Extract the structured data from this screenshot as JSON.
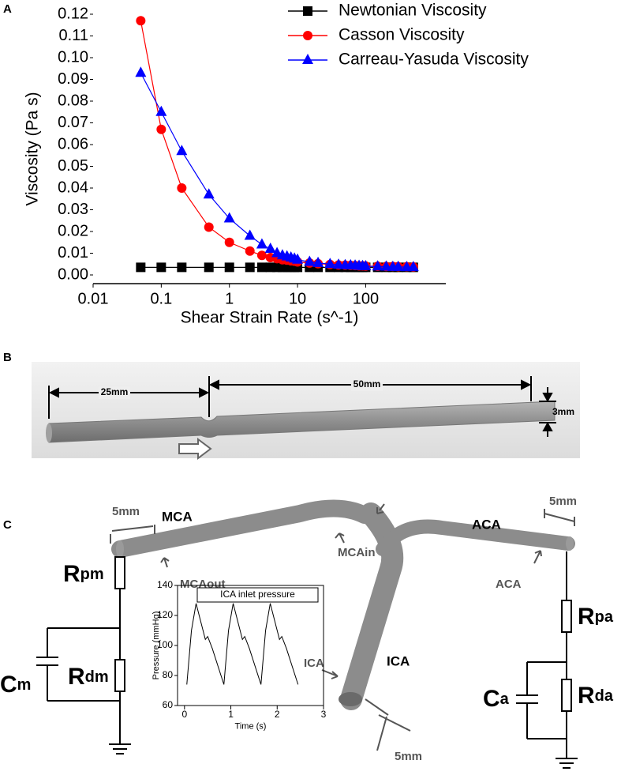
{
  "chart_data": [
    {
      "type": "line",
      "panel": "A",
      "xscale": "log",
      "xlabel": "Shear Strain Rate (s^-1)",
      "ylabel": "Viscosity (Pa s)",
      "x": [
        0.05,
        0.1,
        0.2,
        0.5,
        1,
        2,
        3,
        4,
        5,
        6,
        7,
        8,
        9,
        10,
        15,
        20,
        30,
        40,
        50,
        60,
        70,
        80,
        90,
        100,
        150,
        200,
        250,
        300,
        400,
        500
      ],
      "xlim": [
        0.01,
        1500
      ],
      "xticks": [
        0.01,
        0.1,
        1,
        10,
        100
      ],
      "ylim": [
        -0.004,
        0.12
      ],
      "yticks": [
        {
          "value": 0,
          "label": "0.00"
        },
        0.01,
        0.02,
        0.03,
        0.04,
        0.05,
        0.06,
        0.07,
        0.08,
        0.09,
        {
          "value": 0.1,
          "label": "0.10"
        },
        0.11,
        0.12
      ],
      "grid": false,
      "legend": "upper right",
      "series": [
        {
          "name": "Newtonian Viscosity",
          "color": "#000000",
          "marker": "square",
          "values": [
            0.0035,
            0.0035,
            0.0035,
            0.0035,
            0.0035,
            0.0035,
            0.0035,
            0.0035,
            0.0035,
            0.0035,
            0.0035,
            0.0035,
            0.0035,
            0.0035,
            0.0035,
            0.0035,
            0.0035,
            0.0035,
            0.0035,
            0.0035,
            0.0035,
            0.0035,
            0.0035,
            0.0035,
            0.0035,
            0.0035,
            0.0035,
            0.0035,
            0.0035,
            0.0035
          ]
        },
        {
          "name": "Casson Viscosity",
          "color": "#ff0000",
          "marker": "circle",
          "values": [
            0.117,
            0.067,
            0.04,
            0.022,
            0.015,
            0.011,
            0.009,
            0.008,
            0.0075,
            0.007,
            0.0068,
            0.0065,
            0.0063,
            0.006,
            0.0055,
            0.0052,
            0.0048,
            0.0046,
            0.0045,
            0.0044,
            0.0043,
            0.0042,
            0.0042,
            0.0041,
            0.004,
            0.0039,
            0.0039,
            0.0038,
            0.0038,
            0.0037
          ]
        },
        {
          "name": "Carreau-Yasuda Viscosity",
          "color": "#0000ff",
          "marker": "triangle",
          "values": [
            0.093,
            0.075,
            0.057,
            0.037,
            0.026,
            0.018,
            0.014,
            0.012,
            0.01,
            0.009,
            0.0085,
            0.008,
            0.0075,
            0.007,
            0.006,
            0.0055,
            0.005,
            0.0047,
            0.0045,
            0.0044,
            0.0043,
            0.0042,
            0.0041,
            0.004,
            0.0039,
            0.0038,
            0.0037,
            0.0037,
            0.0036,
            0.0036
          ]
        }
      ]
    },
    {
      "type": "line",
      "title": "ICA inlet pressure",
      "xlabel": "Time (s)",
      "ylabel": "Pressure (mmHg)",
      "x": [
        0.05,
        0.15,
        0.25,
        0.4,
        0.45,
        0.5,
        0.6,
        0.85,
        0.95,
        1.05,
        1.2,
        1.25,
        1.3,
        1.4,
        1.65,
        1.75,
        1.85,
        2.0,
        2.05,
        2.1,
        2.2,
        2.45
      ],
      "xlim": [
        -0.15,
        3
      ],
      "xticks": [
        0,
        1,
        2,
        3
      ],
      "ylim": [
        60,
        140
      ],
      "yticks": [
        60,
        80,
        100,
        120,
        140
      ],
      "series": [
        {
          "color": "#000000",
          "values": [
            74,
            110,
            128,
            110,
            104,
            106,
            98,
            74,
            110,
            128,
            110,
            104,
            106,
            98,
            74,
            110,
            128,
            110,
            104,
            106,
            98,
            74
          ]
        }
      ]
    }
  ],
  "panel_b": {
    "label": "B",
    "length_1": "25mm",
    "length_2": "50mm",
    "diameter": "3mm"
  },
  "panel_c": {
    "label": "C",
    "mca": "MCA",
    "mca_dim": "5mm",
    "mca_in": "MCAin",
    "mca_out": "MCAout",
    "aca": "ACA",
    "aca_dim": "5mm",
    "aca_out": "ACA",
    "ica": "ICA",
    "ica_in": "ICA",
    "ica_dim": "5mm",
    "r_pm": {
      "symbol": "R",
      "subscript": "pm"
    },
    "r_dm": {
      "symbol": "R",
      "subscript": "dm"
    },
    "c_m": {
      "symbol": "C",
      "subscript": "m"
    },
    "r_pa": {
      "symbol": "R",
      "subscript": "pa"
    },
    "r_da": {
      "symbol": "R",
      "subscript": "da"
    },
    "c_a": {
      "symbol": "C",
      "subscript": "a"
    }
  }
}
